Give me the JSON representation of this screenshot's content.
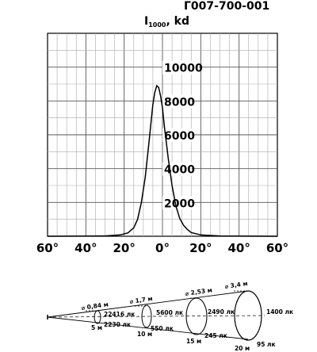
{
  "chart_data": {
    "type": "line",
    "title": "Г007-700-001",
    "ylabel": {
      "main": "I",
      "sub": "1000",
      "unit": ", kd"
    },
    "xlim": [
      -60,
      60
    ],
    "ylim": [
      0,
      12000
    ],
    "x_ticks": [
      {
        "value": -60,
        "label": "60°"
      },
      {
        "value": -40,
        "label": "40°"
      },
      {
        "value": -20,
        "label": "20°"
      },
      {
        "value": 0,
        "label": "0°"
      },
      {
        "value": 20,
        "label": "20°"
      },
      {
        "value": 40,
        "label": "40°"
      },
      {
        "value": 60,
        "label": "60°"
      }
    ],
    "y_ticks": [
      {
        "value": 2000,
        "label": "2000"
      },
      {
        "value": 4000,
        "label": "4000"
      },
      {
        "value": 6000,
        "label": "6000"
      },
      {
        "value": 8000,
        "label": "8000"
      },
      {
        "value": 10000,
        "label": "10000"
      }
    ],
    "grid": true,
    "series": [
      {
        "x": [
          -60,
          -30,
          -22,
          -18,
          -15,
          -13,
          -11,
          -9,
          -7,
          -6,
          -5,
          -4,
          -3,
          -2,
          -1,
          0,
          1,
          3,
          5,
          7,
          9,
          11,
          13,
          15,
          20,
          30,
          60
        ],
        "y": [
          0,
          20,
          80,
          200,
          500,
          1000,
          2000,
          3500,
          5600,
          6700,
          7800,
          8500,
          8900,
          8800,
          8300,
          7600,
          6500,
          4600,
          3000,
          1800,
          1050,
          650,
          400,
          220,
          80,
          20,
          0
        ]
      }
    ]
  },
  "cone_diagram": {
    "distances": [
      {
        "distance": "5 м",
        "diameter": "⌀ 0,84 м",
        "center_lux": "22416 лк",
        "edge_lux": "2230 лк"
      },
      {
        "distance": "10 м",
        "diameter": "⌀ 1,7 м",
        "center_lux": "5600 лк",
        "edge_lux": "550 лк"
      },
      {
        "distance": "15 м",
        "diameter": "⌀ 2,53 м",
        "center_lux": "2490 лк",
        "edge_lux": "245 лк"
      },
      {
        "distance": "20 м",
        "diameter": "⌀ 3,4 м",
        "center_lux": "1400 лк",
        "edge_lux": "95 лк"
      }
    ]
  }
}
